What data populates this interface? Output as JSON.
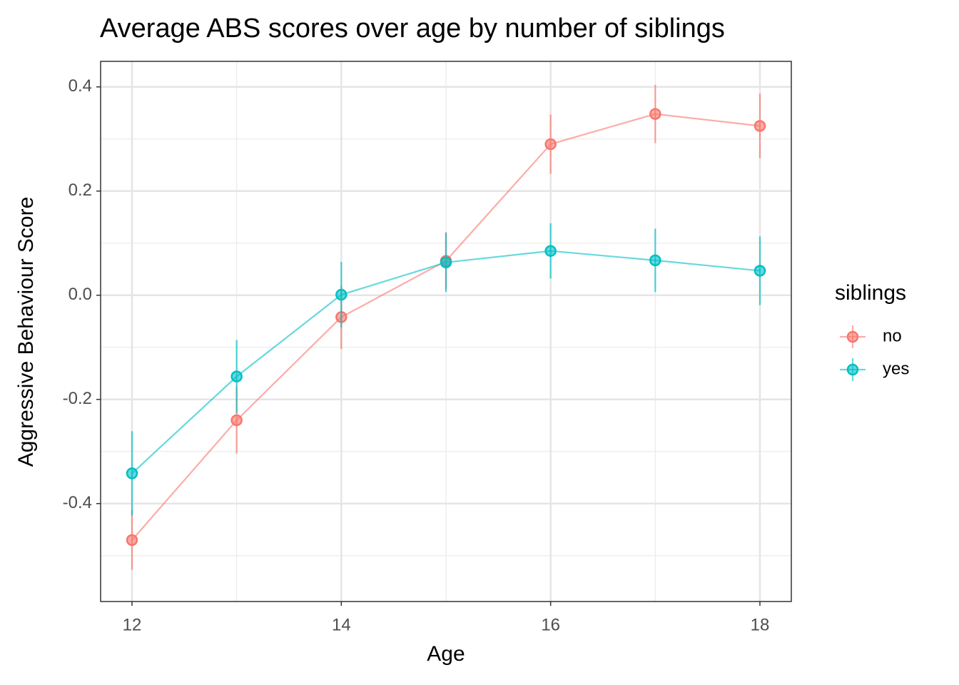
{
  "chart_data": {
    "type": "line",
    "title": "Average ABS scores over age by number of siblings",
    "x_label": "Age",
    "y_label": "Aggressive Behaviour Score",
    "legend_title": "siblings",
    "x": [
      12,
      13,
      14,
      15,
      16,
      17,
      18
    ],
    "series": [
      {
        "name": "no",
        "color": "#F8766D",
        "values": [
          -0.47,
          -0.24,
          -0.042,
          0.066,
          0.29,
          0.348,
          0.325
        ],
        "errors": [
          0.057,
          0.064,
          0.061,
          0.055,
          0.057,
          0.056,
          0.062
        ]
      },
      {
        "name": "yes",
        "color": "#00BFC4",
        "values": [
          -0.342,
          -0.156,
          0.001,
          0.063,
          0.085,
          0.067,
          0.047
        ],
        "errors": [
          0.081,
          0.07,
          0.063,
          0.057,
          0.053,
          0.061,
          0.066
        ]
      }
    ],
    "xlim": [
      11.7,
      18.3
    ],
    "xticks": [
      12,
      14,
      16,
      18
    ],
    "ylim": [
      -0.588,
      0.449
    ],
    "yticks": [
      -0.4,
      -0.2,
      {
        "value": 0,
        "label": "0.0"
      },
      0.2,
      0.4
    ],
    "grid": true,
    "legend": "right"
  }
}
